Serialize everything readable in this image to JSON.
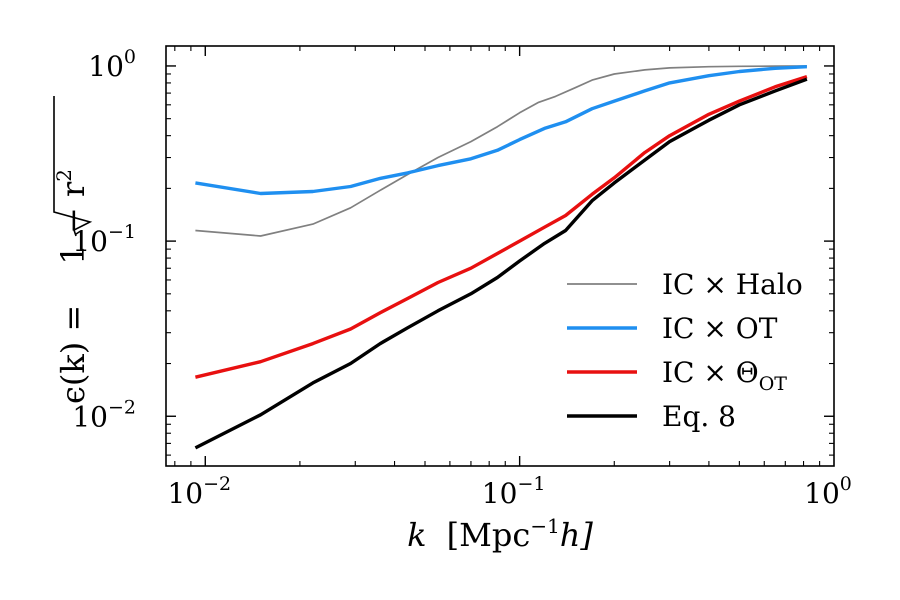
{
  "chart_data": {
    "type": "line",
    "xscale": "log",
    "yscale": "log",
    "xlim": [
      0.0075,
      1.0
    ],
    "ylim": [
      0.0052,
      1.3
    ],
    "xlabel": {
      "var": "k",
      "text": "[Mpc",
      "sup": "−1",
      "tail": "h]"
    },
    "ylabel": {
      "text": "ϵ(k) = ",
      "radicand": "1 − r",
      "sup": "2"
    },
    "xticks": [
      {
        "base": "10",
        "exp": "−2",
        "value": 0.01
      },
      {
        "base": "10",
        "exp": "−1",
        "value": 0.1
      },
      {
        "base": "10",
        "exp": "0",
        "value": 1.0
      }
    ],
    "yticks": [
      {
        "base": "10",
        "exp": "−2",
        "value": 0.01
      },
      {
        "base": "10",
        "exp": "−1",
        "value": 0.1
      },
      {
        "base": "10",
        "exp": "0",
        "value": 1.0
      }
    ],
    "legend_position": "lower-right",
    "series": [
      {
        "name": "IC × Halo",
        "label": {
          "main": "IC × Halo",
          "sub": ""
        },
        "color": "#808080",
        "linewidth": "thin",
        "x": [
          0.0093,
          0.015,
          0.022,
          0.029,
          0.036,
          0.044,
          0.055,
          0.07,
          0.085,
          0.1,
          0.115,
          0.13,
          0.15,
          0.17,
          0.2,
          0.25,
          0.3,
          0.4,
          0.5,
          0.65,
          0.82
        ],
        "y": [
          0.115,
          0.107,
          0.125,
          0.155,
          0.195,
          0.24,
          0.3,
          0.37,
          0.45,
          0.54,
          0.62,
          0.67,
          0.75,
          0.83,
          0.9,
          0.95,
          0.975,
          0.99,
          0.995,
          0.998,
          0.999
        ]
      },
      {
        "name": "IC × OT",
        "label": {
          "main": "IC × OT",
          "sub": ""
        },
        "color": "#1f8ff0",
        "linewidth": "thick",
        "x": [
          0.0093,
          0.015,
          0.022,
          0.029,
          0.036,
          0.044,
          0.055,
          0.07,
          0.085,
          0.1,
          0.12,
          0.14,
          0.17,
          0.2,
          0.25,
          0.3,
          0.4,
          0.5,
          0.65,
          0.82
        ],
        "y": [
          0.215,
          0.187,
          0.192,
          0.205,
          0.228,
          0.245,
          0.27,
          0.295,
          0.33,
          0.38,
          0.44,
          0.48,
          0.57,
          0.63,
          0.72,
          0.8,
          0.88,
          0.93,
          0.97,
          0.99
        ]
      },
      {
        "name": "IC × Θ_OT",
        "label": {
          "main": "IC × Θ",
          "sub": "OT"
        },
        "color": "#e81010",
        "linewidth": "thick",
        "x": [
          0.0093,
          0.015,
          0.022,
          0.029,
          0.036,
          0.044,
          0.055,
          0.07,
          0.085,
          0.1,
          0.12,
          0.14,
          0.17,
          0.2,
          0.25,
          0.3,
          0.4,
          0.5,
          0.65,
          0.82
        ],
        "y": [
          0.0167,
          0.0205,
          0.026,
          0.0315,
          0.039,
          0.047,
          0.058,
          0.07,
          0.085,
          0.1,
          0.12,
          0.14,
          0.185,
          0.23,
          0.32,
          0.4,
          0.53,
          0.63,
          0.76,
          0.87
        ]
      },
      {
        "name": "Eq. 8",
        "label": {
          "main": "Eq. 8",
          "sub": ""
        },
        "color": "#000000",
        "linewidth": "thick",
        "x": [
          0.0093,
          0.015,
          0.022,
          0.029,
          0.036,
          0.044,
          0.055,
          0.07,
          0.085,
          0.1,
          0.12,
          0.14,
          0.17,
          0.2,
          0.25,
          0.3,
          0.4,
          0.5,
          0.65,
          0.82
        ],
        "y": [
          0.0066,
          0.0102,
          0.0155,
          0.02,
          0.026,
          0.032,
          0.04,
          0.05,
          0.062,
          0.077,
          0.097,
          0.115,
          0.17,
          0.215,
          0.29,
          0.37,
          0.49,
          0.6,
          0.72,
          0.84
        ]
      }
    ]
  }
}
